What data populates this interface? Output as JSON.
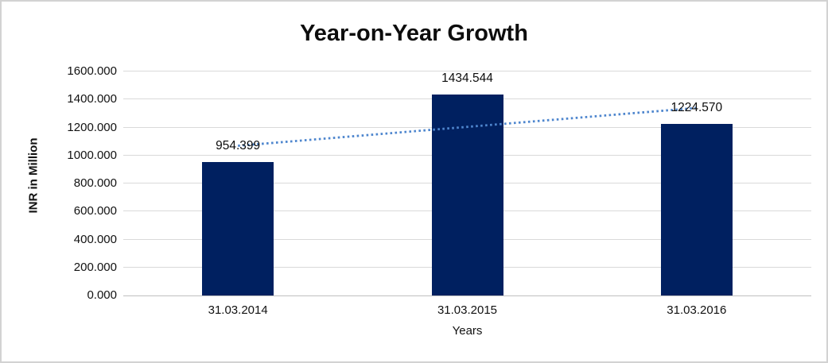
{
  "frame": {
    "background": "#ffffff",
    "border_color": "#d2d2d2"
  },
  "chart_data": {
    "type": "bar",
    "title": "Year-on-Year Growth",
    "categories": [
      "31.03.2014",
      "31.03.2015",
      "31.03.2016"
    ],
    "values": [
      954.399,
      1434.544,
      1224.57
    ],
    "data_labels": [
      "954.399",
      "1434.544",
      "1224.570"
    ],
    "xlabel": "Years",
    "ylabel": "INR in Million",
    "ylim": [
      0,
      1600
    ],
    "ytick_step": 200,
    "ytick_labels": [
      "0.000",
      "200.000",
      "400.000",
      "600.000",
      "800.000",
      "1000.000",
      "1200.000",
      "1400.000",
      "1600.000"
    ],
    "grid": true,
    "legend_position": "none",
    "bar_color": "#002060",
    "gridline_color": "#d9d9d9",
    "axis_line_color": "#bfbfbf",
    "trendline": {
      "type": "linear",
      "style": "dotted",
      "color": "#4e86ce",
      "fitted_values": [
        1069.42,
        1204.5,
        1339.59
      ]
    }
  }
}
